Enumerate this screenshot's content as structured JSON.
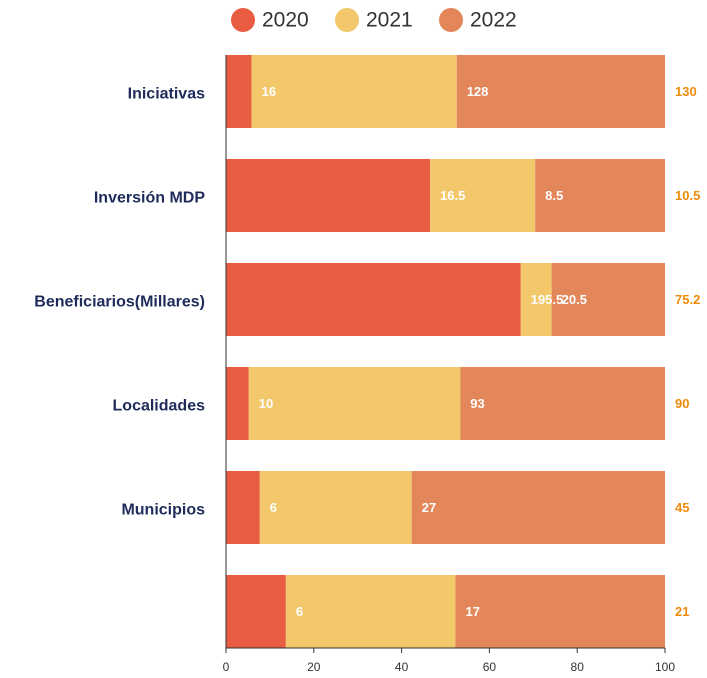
{
  "chart_data": {
    "type": "stacked_bar_horizontal",
    "stack": "percent",
    "categories": [
      "Iniciativas",
      "Inversión MDP",
      "Beneficiarios(Millares)",
      "Localidades",
      "Municipios",
      null
    ],
    "series": [
      {
        "name": "2020",
        "color": "#e85d41",
        "values": [
          16,
          16.5,
          195.5,
          10,
          6,
          6
        ]
      },
      {
        "name": "2021",
        "color": "#f2c86b",
        "values": [
          128,
          8.5,
          20.5,
          93,
          27,
          17
        ]
      },
      {
        "name": "2022",
        "color": "#e3865a",
        "values": [
          130,
          10.5,
          75.2,
          90,
          45,
          21
        ]
      }
    ],
    "xlim": [
      0,
      100
    ],
    "xticks": [
      0,
      20,
      40,
      60,
      80,
      100
    ],
    "legend": "top"
  }
}
